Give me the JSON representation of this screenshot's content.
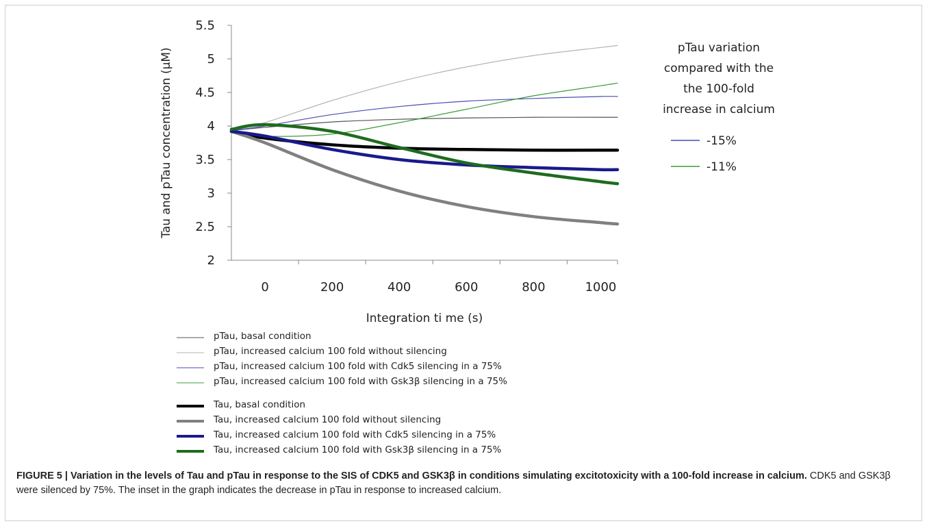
{
  "chart_data": {
    "type": "line",
    "xlabel": "Integration ti me (s)",
    "ylabel": "Tau and pTau concentration (μM)",
    "xlim": [
      -100,
      1050
    ],
    "ylim": [
      2,
      5.5
    ],
    "x_ticks": [
      "0",
      "200",
      "400",
      "600",
      "800",
      "1000"
    ],
    "y_ticks": [
      "2",
      "2.5",
      "3",
      "3.5",
      "4",
      "4.5",
      "5",
      "5.5"
    ],
    "grid": false,
    "series": [
      {
        "name": "pTau, basal condition",
        "color": "#555555",
        "weight": "thin",
        "x": [
          -100,
          0,
          200,
          400,
          600,
          800,
          1000,
          1050
        ],
        "y": [
          3.93,
          3.98,
          4.06,
          4.1,
          4.12,
          4.13,
          4.13,
          4.13
        ]
      },
      {
        "name": "pTau, increased calcium 100 fold without  silencing",
        "color": "#b3b3b3",
        "weight": "thin",
        "x": [
          -100,
          0,
          200,
          400,
          600,
          800,
          1000,
          1050
        ],
        "y": [
          3.93,
          4.05,
          4.38,
          4.66,
          4.88,
          5.05,
          5.17,
          5.2
        ]
      },
      {
        "name": "pTau, increased calcium 100  fold  with Cdk5  silencing in a 75%",
        "color": "#4a4ab8",
        "weight": "thin",
        "x": [
          -100,
          0,
          200,
          400,
          600,
          800,
          1000,
          1050
        ],
        "y": [
          3.93,
          4.0,
          4.17,
          4.29,
          4.37,
          4.41,
          4.44,
          4.44
        ]
      },
      {
        "name": "pTau, increased calcium 100  fold with Gsk3β  silencing in a 75%",
        "color": "#3c9a3c",
        "weight": "thin",
        "x": [
          -100,
          0,
          200,
          400,
          600,
          800,
          1000,
          1050
        ],
        "y": [
          3.95,
          3.85,
          3.88,
          4.05,
          4.25,
          4.45,
          4.6,
          4.64
        ]
      },
      {
        "name": "Tau, basal  condition",
        "color": "#000000",
        "weight": "thick",
        "x": [
          -100,
          0,
          200,
          400,
          600,
          800,
          1000,
          1050
        ],
        "y": [
          3.92,
          3.82,
          3.72,
          3.67,
          3.65,
          3.64,
          3.64,
          3.64
        ]
      },
      {
        "name": "Tau, increased calcium 100 fold without  silencing",
        "color": "#808080",
        "weight": "thick",
        "x": [
          -100,
          0,
          200,
          400,
          600,
          800,
          1000,
          1050
        ],
        "y": [
          3.92,
          3.75,
          3.35,
          3.03,
          2.8,
          2.65,
          2.56,
          2.54
        ]
      },
      {
        "name": "Tau, increased calcium 100  fold with Cdk5  silencing in a 75%",
        "color": "#1a1a8c",
        "weight": "thick",
        "x": [
          -100,
          0,
          200,
          400,
          600,
          800,
          1000,
          1050
        ],
        "y": [
          3.92,
          3.85,
          3.65,
          3.5,
          3.42,
          3.38,
          3.35,
          3.35
        ]
      },
      {
        "name": "Tau, increased calcium 100  fold with Gsk3β  silencing in a 75%",
        "color": "#1f6b1f",
        "weight": "thick",
        "x": [
          -100,
          0,
          200,
          400,
          600,
          800,
          1000,
          1050
        ],
        "y": [
          3.95,
          4.02,
          3.92,
          3.68,
          3.45,
          3.3,
          3.17,
          3.14
        ]
      }
    ],
    "inset": {
      "title_lines": [
        "pTau variation",
        "compared with the",
        "the 100-fold",
        "increase in calcium"
      ],
      "entries": [
        {
          "label": "-15%",
          "color": "#4a4ab8"
        },
        {
          "label": "-11%",
          "color": "#3c9a3c"
        }
      ]
    }
  },
  "caption": {
    "bold": "FIGURE 5 | Variation in the levels of Tau and pTau in response to the SIS of CDK5 and GSK3β in conditions simulating excitotoxicity with a 100-fold increase in calcium.",
    "text": " CDK5 and GSK3β were silenced by 75%. The inset in the graph indicates the decrease in pTau in response to increased calcium."
  }
}
